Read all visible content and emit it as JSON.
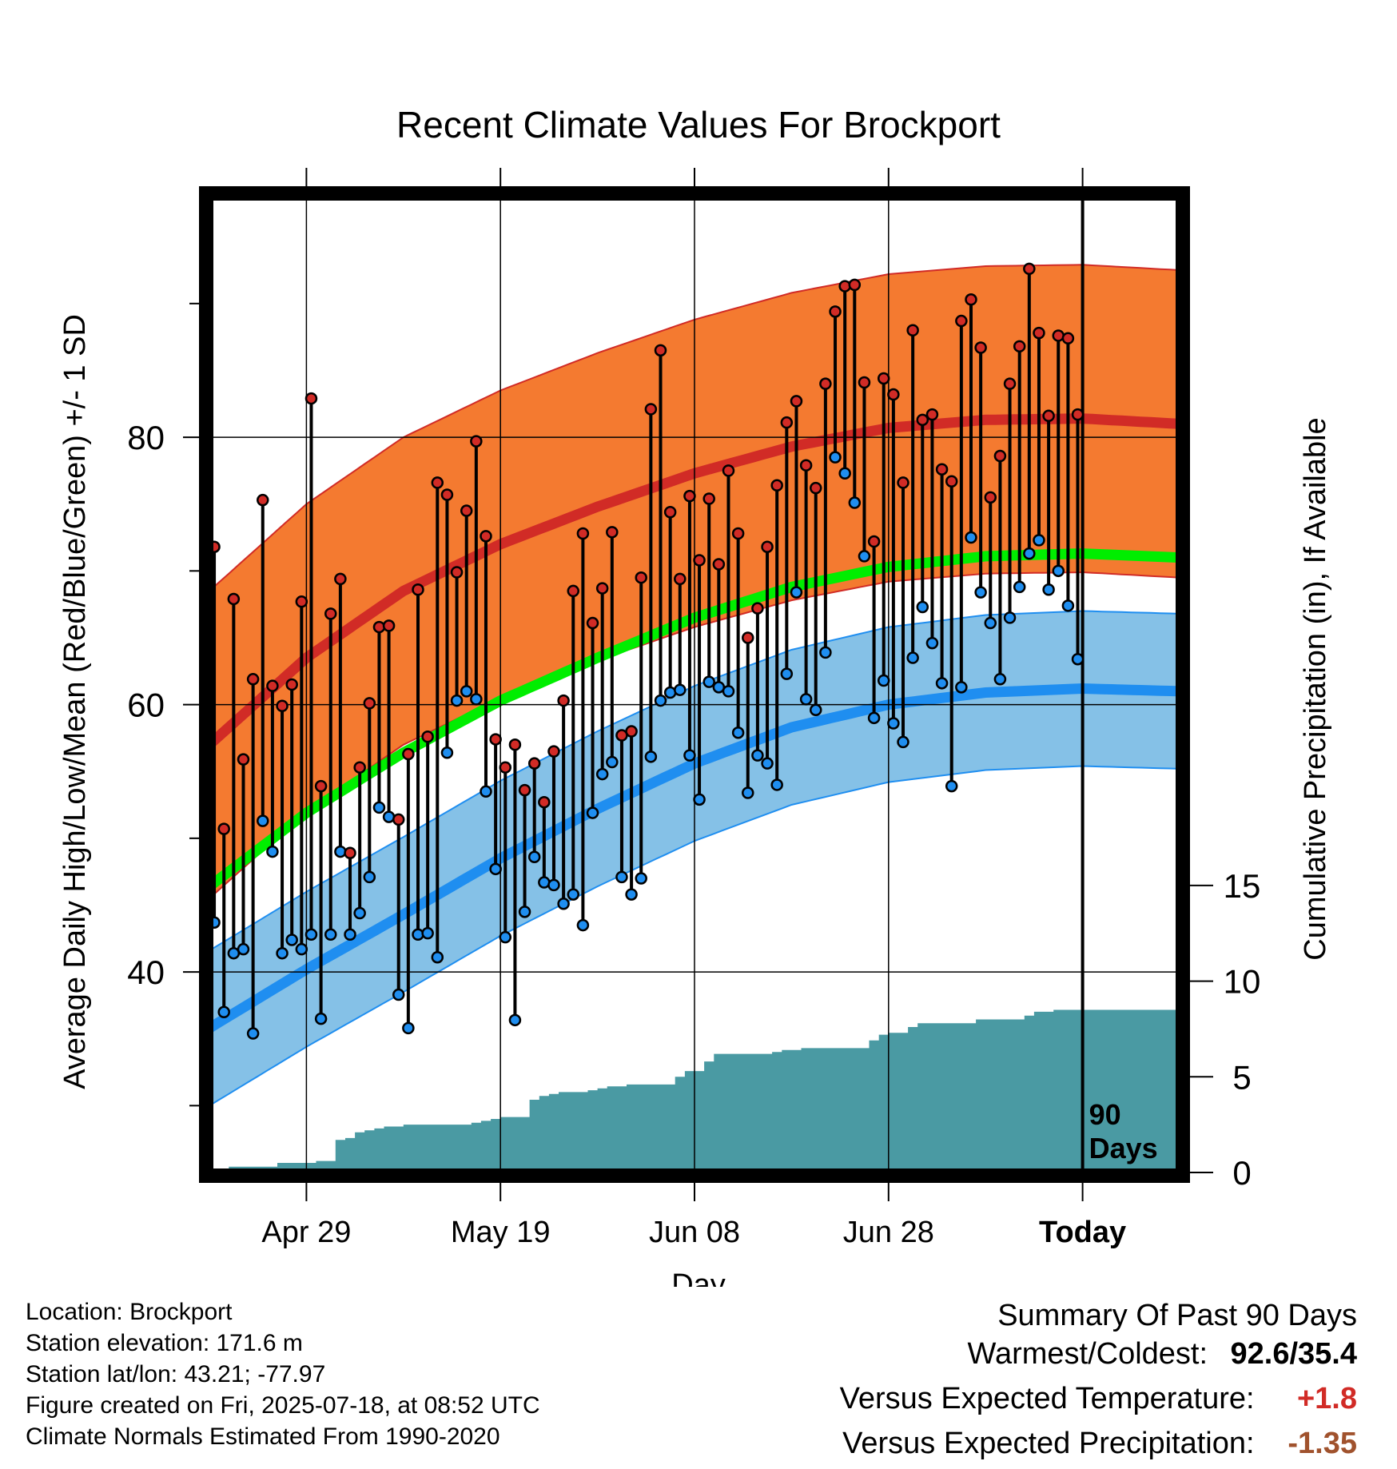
{
  "colors": {
    "high_fill": "#f47a30",
    "high_mean": "#d12b26",
    "low_fill": "#85c1e7",
    "low_mean": "#1f8ef0",
    "overall_mean": "#00ee00",
    "precip": "#4a9aa3",
    "high_dot": "#d12b26",
    "low_dot": "#1f8ef0",
    "warm_value": "#d12b26",
    "precip_value": "#a0522d"
  },
  "chart_data": {
    "type": "line",
    "title": "Recent Climate Values For Brockport",
    "xlabel": "Day",
    "ylabel": "Average Daily High/Low/Mean (Red/Blue/Green) +/- 1 SD",
    "y2label": "Cumulative Precipitation (in), If Available",
    "x_tick_labels": [
      "Apr 29",
      "May 19",
      "Jun 08",
      "Jun 28",
      "Today"
    ],
    "x_tick_day_index": [
      10,
      30,
      50,
      70,
      90
    ],
    "xlim_days": [
      0,
      100
    ],
    "ylim": [
      25,
      98
    ],
    "y_ticks": [
      40,
      60,
      80
    ],
    "y2lim": [
      0,
      51
    ],
    "y2_ticks": [
      0,
      5,
      10,
      15
    ],
    "today_label": "90\nDays",
    "grid": true,
    "normals": {
      "day_index": [
        0,
        10,
        20,
        30,
        40,
        50,
        60,
        70,
        80,
        90,
        100
      ],
      "high_mean": [
        57.0,
        63.5,
        68.5,
        72.0,
        74.8,
        77.3,
        79.3,
        80.7,
        81.3,
        81.4,
        81.0
      ],
      "high_sd": 11.5,
      "low_mean": [
        35.8,
        40.2,
        44.3,
        48.5,
        52.2,
        55.6,
        58.3,
        60.0,
        60.9,
        61.2,
        61.0
      ],
      "low_sd": 5.8,
      "overall_mean": [
        46.4,
        51.9,
        56.4,
        60.3,
        63.5,
        66.5,
        68.8,
        70.3,
        71.1,
        71.3,
        71.0
      ]
    },
    "series": [
      {
        "name": "High",
        "values": [
          71.8,
          50.7,
          67.9,
          55.9,
          61.9,
          75.3,
          61.4,
          59.9,
          61.5,
          67.7,
          82.9,
          53.9,
          66.8,
          69.4,
          48.9,
          55.3,
          60.1,
          65.8,
          65.9,
          51.4,
          56.3,
          68.6,
          57.6,
          76.6,
          75.7,
          69.9,
          74.5,
          79.7,
          72.6,
          57.4,
          55.3,
          57.0,
          53.6,
          55.6,
          52.7,
          56.5,
          60.3,
          68.5,
          72.8,
          66.1,
          68.7,
          72.9,
          57.7,
          58.0,
          69.5,
          82.1,
          86.5,
          74.4,
          69.4,
          75.6,
          70.8,
          75.4,
          70.5,
          77.5,
          72.8,
          65.0,
          67.2,
          71.8,
          76.4,
          81.1,
          82.7,
          77.9,
          76.2,
          84.0,
          89.4,
          91.3,
          91.4,
          84.1,
          72.2,
          84.4,
          83.2,
          76.6,
          88.0,
          81.3,
          81.7,
          77.6,
          76.7,
          88.7,
          90.3,
          86.7,
          75.5,
          78.6,
          84.0,
          86.8,
          92.6,
          87.8,
          81.6,
          87.6,
          87.4,
          81.7
        ]
      },
      {
        "name": "Low",
        "values": [
          43.7,
          37.0,
          41.4,
          41.7,
          35.4,
          51.3,
          49.0,
          41.4,
          42.4,
          41.7,
          42.8,
          36.5,
          42.8,
          49.0,
          42.8,
          44.4,
          47.1,
          52.3,
          51.6,
          38.3,
          35.8,
          42.8,
          42.9,
          41.1,
          56.4,
          60.3,
          61.0,
          60.4,
          53.5,
          47.7,
          42.6,
          36.4,
          44.5,
          48.6,
          46.7,
          46.5,
          45.1,
          45.8,
          43.5,
          51.9,
          54.8,
          55.7,
          47.1,
          45.8,
          47.0,
          56.1,
          60.3,
          60.9,
          61.1,
          56.2,
          52.9,
          61.7,
          61.3,
          61.0,
          57.9,
          53.4,
          56.2,
          55.6,
          54.0,
          62.3,
          68.4,
          60.4,
          59.6,
          63.9,
          78.5,
          77.3,
          75.1,
          71.1,
          59.0,
          61.8,
          58.6,
          57.2,
          63.5,
          67.3,
          64.6,
          61.6,
          53.9,
          61.3,
          72.5,
          68.4,
          66.1,
          61.9,
          66.5,
          68.8,
          71.3,
          72.3,
          68.6,
          70.0,
          67.4,
          63.4
        ]
      }
    ],
    "precip_cumulative": [
      0.0,
      0.0,
      0.3,
      0.3,
      0.3,
      0.3,
      0.3,
      0.5,
      0.5,
      0.5,
      0.5,
      0.6,
      0.6,
      1.7,
      1.8,
      2.1,
      2.2,
      2.3,
      2.4,
      2.4,
      2.5,
      2.5,
      2.5,
      2.5,
      2.5,
      2.5,
      2.5,
      2.6,
      2.7,
      2.8,
      2.9,
      2.9,
      2.9,
      3.8,
      4.0,
      4.1,
      4.2,
      4.2,
      4.2,
      4.3,
      4.4,
      4.5,
      4.5,
      4.6,
      4.6,
      4.6,
      4.6,
      4.6,
      5.0,
      5.3,
      5.3,
      5.8,
      6.2,
      6.2,
      6.2,
      6.2,
      6.2,
      6.2,
      6.3,
      6.4,
      6.4,
      6.5,
      6.5,
      6.5,
      6.5,
      6.5,
      6.5,
      6.5,
      6.9,
      7.2,
      7.3,
      7.3,
      7.6,
      7.8,
      7.8,
      7.8,
      7.8,
      7.8,
      7.8,
      8.0,
      8.0,
      8.0,
      8.0,
      8.0,
      8.2,
      8.4,
      8.4,
      8.5,
      8.5,
      8.5,
      8.5
    ]
  },
  "footer": {
    "location": "Location: Brockport",
    "elevation": "Station elevation: 171.6 m",
    "latlon": "Station lat/lon: 43.21; -77.97",
    "created": "Figure created on Fri, 2025-07-18, at 08:52 UTC",
    "normals": "Climate Normals Estimated From 1990-2020"
  },
  "summary": {
    "title": "Summary Of Past 90 Days",
    "warmest_coldest_label": "Warmest/Coldest:",
    "warmest_coldest_value": "92.6/35.4",
    "temp_label": "Versus Expected Temperature:",
    "temp_value": "+1.8",
    "precip_label": "Versus Expected Precipitation:",
    "precip_value": "-1.35"
  }
}
